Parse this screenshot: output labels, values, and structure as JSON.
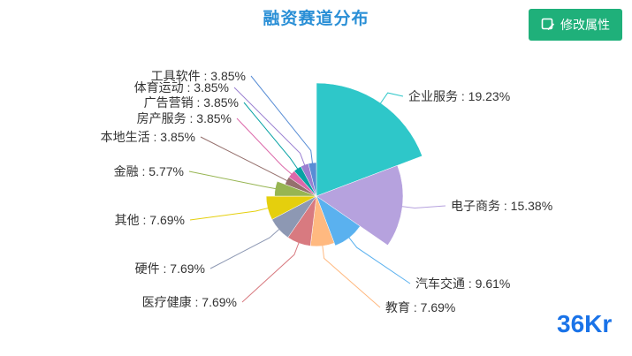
{
  "edit_button": {
    "label": "修改属性",
    "icon": "edit-icon"
  },
  "logo": {
    "text": "36Kr",
    "color": "#1a73e8"
  },
  "chart_data": {
    "type": "pie",
    "variant": "rose",
    "title": "融资赛道分布",
    "start_angle_deg": 90,
    "direction": "clockwise",
    "series": [
      {
        "name": "企业服务",
        "value": 19.23,
        "color": "#2ec7c9",
        "label": "企业服务 : 19.23%"
      },
      {
        "name": "电子商务",
        "value": 15.38,
        "color": "#b6a2de",
        "label": "电子商务 : 15.38%"
      },
      {
        "name": "汽车交通",
        "value": 9.61,
        "color": "#5ab1ef",
        "label": "汽车交通 : 9.61%"
      },
      {
        "name": "教育",
        "value": 7.69,
        "color": "#ffb980",
        "label": "教育 : 7.69%"
      },
      {
        "name": "医疗健康",
        "value": 7.69,
        "color": "#d87a80",
        "label": "医疗健康 : 7.69%"
      },
      {
        "name": "硬件",
        "value": 7.69,
        "color": "#8d98b3",
        "label": "硬件 : 7.69%"
      },
      {
        "name": "其他",
        "value": 7.69,
        "color": "#e5cf0d",
        "label": "其他 : 7.69%"
      },
      {
        "name": "金融",
        "value": 5.77,
        "color": "#97b552",
        "label": "金融 : 5.77%"
      },
      {
        "name": "本地生活",
        "value": 3.85,
        "color": "#95706d",
        "label": "本地生活 : 3.85%"
      },
      {
        "name": "房产服务",
        "value": 3.85,
        "color": "#dc69aa",
        "label": "房产服务 : 3.85%"
      },
      {
        "name": "广告营销",
        "value": 3.85,
        "color": "#07a2a4",
        "label": "广告营销 : 3.85%"
      },
      {
        "name": "体育运动",
        "value": 3.85,
        "color": "#9a7fd1",
        "label": "体育运动 : 3.85%"
      },
      {
        "name": "工具软件",
        "value": 3.85,
        "color": "#588dd5",
        "label": "工具软件 : 3.85%"
      }
    ]
  }
}
